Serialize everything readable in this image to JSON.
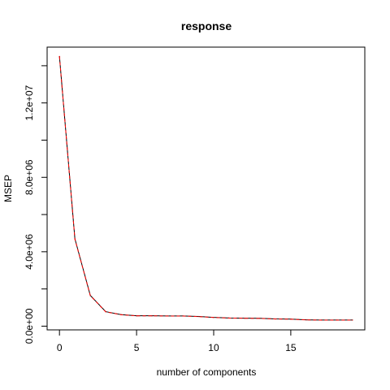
{
  "chart_data": {
    "type": "line",
    "title": "response",
    "xlabel": "number of components",
    "ylabel": "MSEP",
    "xlim": [
      -0.8,
      19.8
    ],
    "ylim": [
      -200000,
      15000000
    ],
    "x_ticks": [
      0,
      5,
      10,
      15
    ],
    "x_tick_labels": [
      "0",
      "5",
      "10",
      "15"
    ],
    "y_ticks": [
      0,
      4000000,
      8000000,
      12000000
    ],
    "y_tick_labels": [
      "0.0e+00",
      "4.0e+06",
      "8.0e+06",
      "1.2e+07"
    ],
    "grid": false,
    "series": [
      {
        "color": "#000000",
        "dash": "solid",
        "x": [
          0,
          1,
          2,
          3,
          4,
          5,
          6,
          7,
          8,
          9,
          10,
          11,
          12,
          13,
          14,
          15,
          16,
          17,
          18,
          19
        ],
        "values": [
          14500000,
          4700000,
          1650000,
          780000,
          620000,
          560000,
          560000,
          550000,
          550000,
          520000,
          470000,
          440000,
          430000,
          420000,
          390000,
          380000,
          340000,
          330000,
          330000,
          330000
        ]
      },
      {
        "color": "#ff0000",
        "dash": "dashed",
        "x": [
          0,
          1,
          2,
          3,
          4,
          5,
          6,
          7,
          8,
          9,
          10,
          11,
          12,
          13,
          14,
          15,
          16,
          17,
          18,
          19
        ],
        "values": [
          14500000,
          4680000,
          1640000,
          770000,
          615000,
          555000,
          555000,
          545000,
          545000,
          515000,
          465000,
          435000,
          425000,
          415000,
          385000,
          375000,
          335000,
          325000,
          325000,
          325000
        ]
      }
    ]
  }
}
